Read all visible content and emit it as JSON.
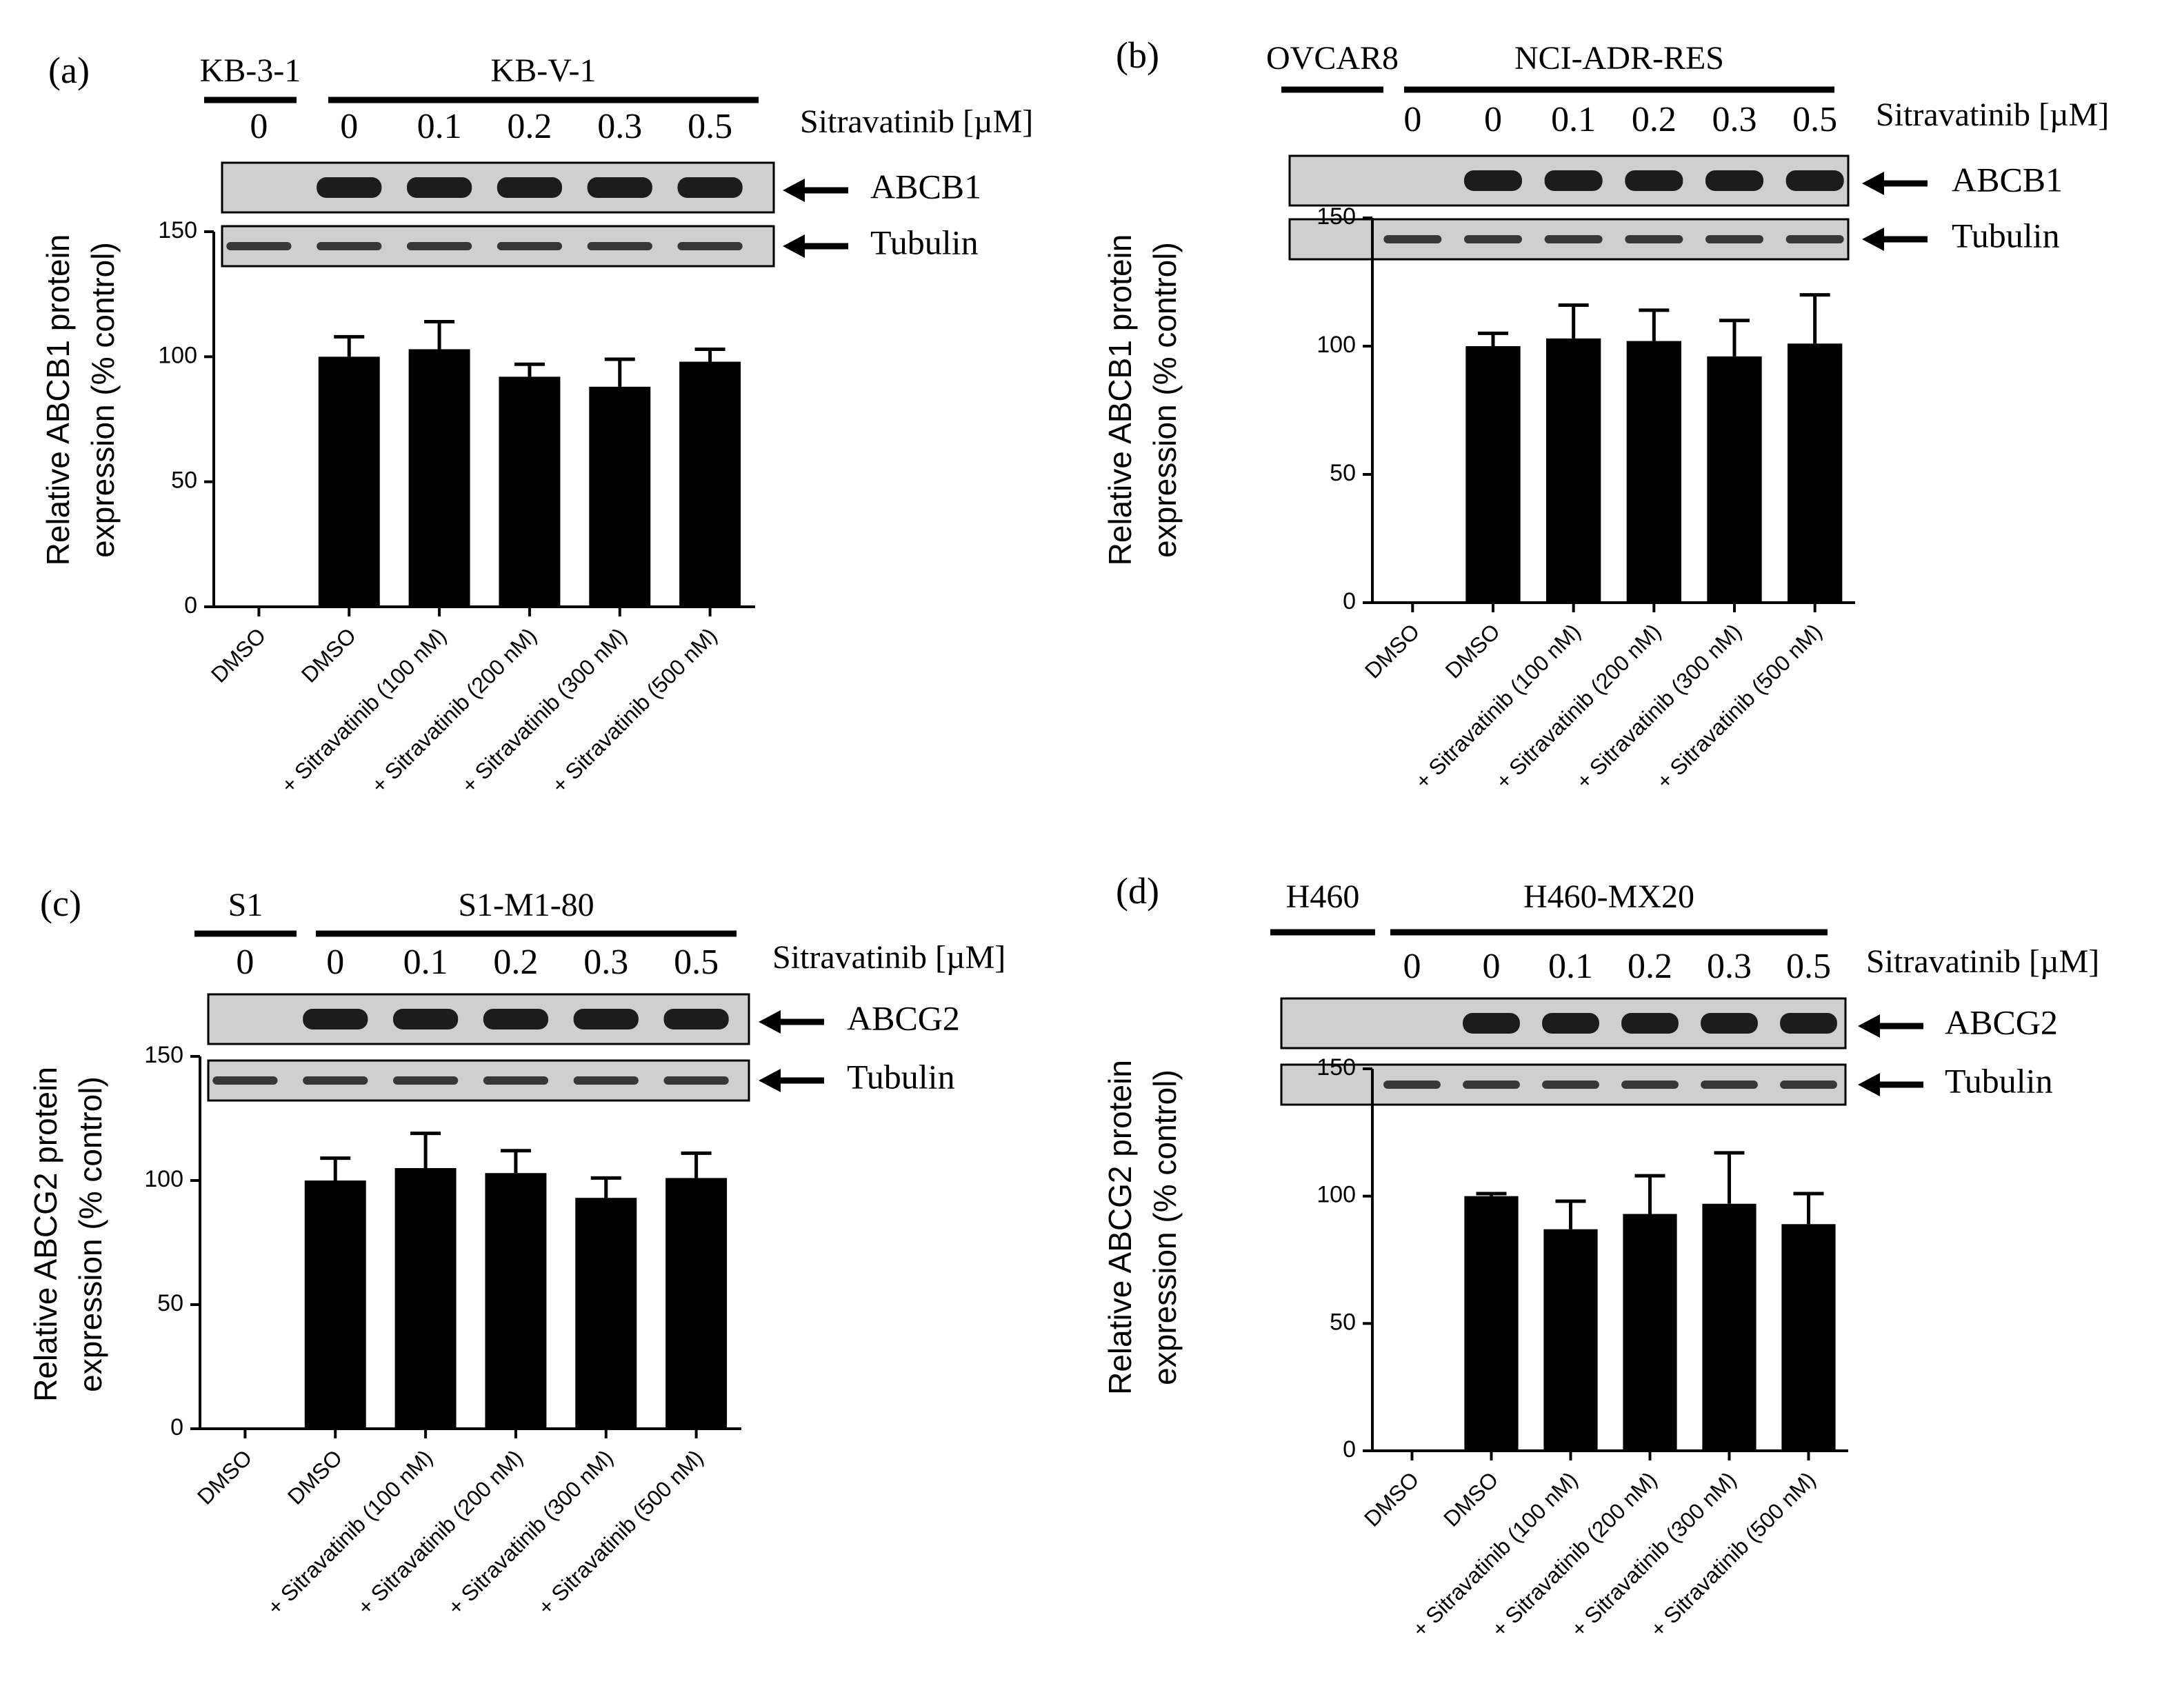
{
  "figure": {
    "colors": {
      "ink": "#000000",
      "blot_bg": "#cfcfcf",
      "band": "#1c1c1c",
      "bar": "#000000",
      "page": "#ffffff"
    }
  },
  "chart_data": [
    {
      "type": "bar",
      "panel_label": "(a)",
      "parental_line": "KB-3-1",
      "resistant_line": "KB-V-1",
      "conc_header": "Sitravatinib [µM]",
      "conc_labels": [
        "0",
        "0",
        "0.1",
        "0.2",
        "0.3",
        "0.5"
      ],
      "protein_label": "ABCB1",
      "loading_label": "Tubulin",
      "categories": [
        "DMSO",
        "DMSO",
        "+ Sitravatinib (100 nM)",
        "+ Sitravatinib (200 nM)",
        "+ Sitravatinib (300 nM)",
        "+ Sitravatinib (500 nM)"
      ],
      "values": [
        0,
        100,
        103,
        92,
        88,
        98
      ],
      "errors": [
        0,
        8,
        11,
        5,
        11,
        5
      ],
      "band_intensity": [
        0,
        1,
        1,
        1,
        1,
        1
      ],
      "ylabel_line1": "Relative ABCB1 protein",
      "ylabel_line2": "expression (% control)",
      "yticks": [
        "0",
        "50",
        "100",
        "150"
      ],
      "ylim": [
        0,
        150
      ]
    },
    {
      "type": "bar",
      "panel_label": "(b)",
      "parental_line": "OVCAR8",
      "resistant_line": "NCI-ADR-RES",
      "conc_header": "Sitravatinib [µM]",
      "conc_labels": [
        "0",
        "0",
        "0.1",
        "0.2",
        "0.3",
        "0.5"
      ],
      "protein_label": "ABCB1",
      "loading_label": "Tubulin",
      "categories": [
        "DMSO",
        "DMSO",
        "+ Sitravatinib (100 nM)",
        "+ Sitravatinib (200 nM)",
        "+ Sitravatinib (300 nM)",
        "+ Sitravatinib (500 nM)"
      ],
      "values": [
        0,
        100,
        103,
        102,
        96,
        101
      ],
      "errors": [
        0,
        5,
        13,
        12,
        14,
        19
      ],
      "band_intensity": [
        0,
        1,
        1,
        1,
        1,
        1
      ],
      "ylabel_line1": "Relative ABCB1 protein",
      "ylabel_line2": "expression (% control)",
      "yticks": [
        "0",
        "50",
        "100",
        "150"
      ],
      "ylim": [
        0,
        150
      ]
    },
    {
      "type": "bar",
      "panel_label": "(c)",
      "parental_line": "S1",
      "resistant_line": "S1-M1-80",
      "conc_header": "Sitravatinib [µM]",
      "conc_labels": [
        "0",
        "0",
        "0.1",
        "0.2",
        "0.3",
        "0.5"
      ],
      "protein_label": "ABCG2",
      "loading_label": "Tubulin",
      "categories": [
        "DMSO",
        "DMSO",
        "+ Sitravatinib (100 nM)",
        "+ Sitravatinib (200 nM)",
        "+ Sitravatinib (300 nM)",
        "+ Sitravatinib (500 nM)"
      ],
      "values": [
        0,
        100,
        105,
        103,
        93,
        101
      ],
      "errors": [
        0,
        9,
        14,
        9,
        8,
        10
      ],
      "band_intensity": [
        0,
        1,
        1,
        1,
        1,
        1
      ],
      "ylabel_line1": "Relative ABCG2 protein",
      "ylabel_line2": "expression (% control)",
      "yticks": [
        "0",
        "50",
        "100",
        "150"
      ],
      "ylim": [
        0,
        150
      ]
    },
    {
      "type": "bar",
      "panel_label": "(d)",
      "parental_line": "H460",
      "resistant_line": "H460-MX20",
      "conc_header": "Sitravatinib [µM]",
      "conc_labels": [
        "0",
        "0",
        "0.1",
        "0.2",
        "0.3",
        "0.5"
      ],
      "protein_label": "ABCG2",
      "loading_label": "Tubulin",
      "categories": [
        "DMSO",
        "DMSO",
        "+ Sitravatinib (100 nM)",
        "+ Sitravatinib (200 nM)",
        "+ Sitravatinib (300 nM)",
        "+ Sitravatinib (500 nM)"
      ],
      "values": [
        0,
        100,
        87,
        93,
        97,
        89
      ],
      "errors": [
        0,
        1,
        11,
        15,
        20,
        12
      ],
      "band_intensity": [
        0,
        1,
        1,
        1,
        1,
        1
      ],
      "ylabel_line1": "Relative ABCG2 protein",
      "ylabel_line2": "expression (% control)",
      "yticks": [
        "0",
        "50",
        "100",
        "150"
      ],
      "ylim": [
        0,
        150
      ]
    }
  ]
}
